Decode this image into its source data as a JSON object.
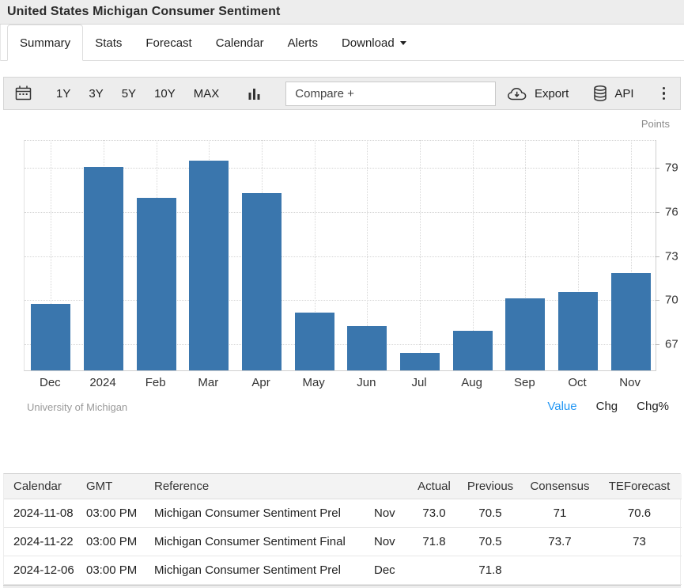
{
  "page": {
    "title": "United States Michigan Consumer Sentiment"
  },
  "tabs": {
    "items": [
      {
        "label": "Summary",
        "active": true
      },
      {
        "label": "Stats",
        "active": false
      },
      {
        "label": "Forecast",
        "active": false
      },
      {
        "label": "Calendar",
        "active": false
      },
      {
        "label": "Alerts",
        "active": false
      },
      {
        "label": "Download",
        "active": false,
        "has_caret": true
      }
    ]
  },
  "toolbar": {
    "ranges": [
      "1Y",
      "3Y",
      "5Y",
      "10Y",
      "MAX"
    ],
    "compare_placeholder": "Compare +",
    "export_label": "Export",
    "api_label": "API",
    "icons": [
      "calendar-icon",
      "bar-chart-icon",
      "cloud-download-icon",
      "database-icon",
      "kebab-menu-icon"
    ]
  },
  "chart": {
    "points_label": "Points",
    "attribution": "University of Michigan",
    "series_links": [
      {
        "label": "Value",
        "active": true
      },
      {
        "label": "Chg",
        "active": false
      },
      {
        "label": "Chg%",
        "active": false
      }
    ]
  },
  "chart_data": {
    "type": "bar",
    "title": "United States Michigan Consumer Sentiment",
    "categories": [
      "Dec",
      "2024",
      "Feb",
      "Mar",
      "Apr",
      "May",
      "Jun",
      "Jul",
      "Aug",
      "Sep",
      "Oct",
      "Nov"
    ],
    "values": [
      69.7,
      79.0,
      76.9,
      79.4,
      77.2,
      69.1,
      68.2,
      66.4,
      67.9,
      70.1,
      70.5,
      71.8
    ],
    "xlabel": "",
    "ylabel": "Points",
    "yticks": [
      67,
      70,
      73,
      76,
      79
    ],
    "ylim": [
      65.2,
      80.85
    ],
    "bar_color": "#3a76ad",
    "grid": "dotted",
    "legend_position": "none",
    "source": "University of Michigan"
  },
  "table": {
    "headers": [
      "Calendar",
      "GMT",
      "Reference",
      "",
      "Actual",
      "Previous",
      "Consensus",
      "TEForecast"
    ],
    "rows": [
      [
        "2024-11-08",
        "03:00 PM",
        "Michigan Consumer Sentiment Prel",
        "Nov",
        "73.0",
        "70.5",
        "71",
        "70.6"
      ],
      [
        "2024-11-22",
        "03:00 PM",
        "Michigan Consumer Sentiment Final",
        "Nov",
        "71.8",
        "70.5",
        "73.7",
        "73"
      ],
      [
        "2024-12-06",
        "03:00 PM",
        "Michigan Consumer Sentiment Prel",
        "Dec",
        "",
        "71.8",
        "",
        ""
      ]
    ]
  },
  "colors": {
    "accent_link": "#2196f3",
    "bar": "#3a76ad"
  }
}
